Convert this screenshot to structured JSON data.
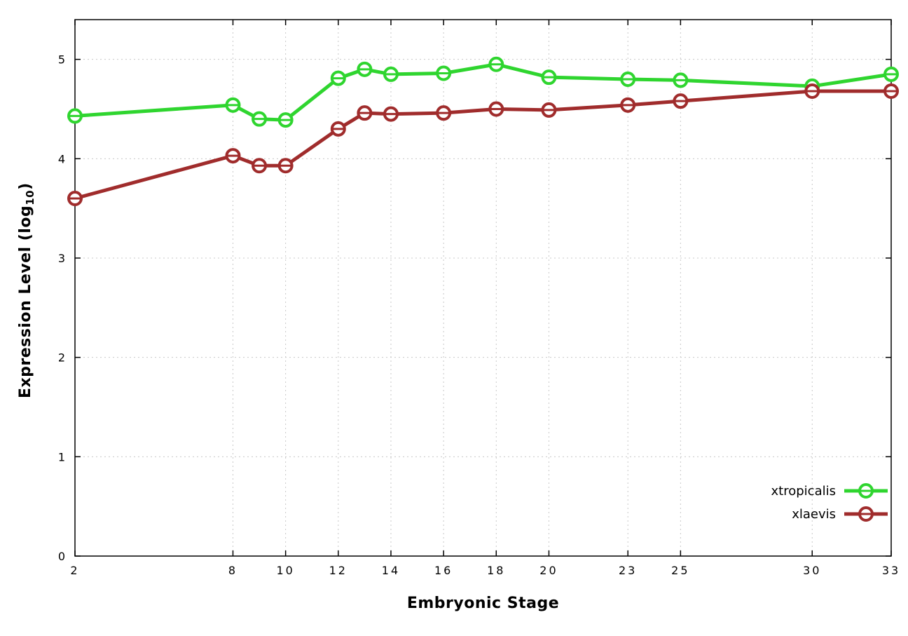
{
  "chart_data": {
    "type": "line",
    "title": "",
    "xlabel": "Embryonic Stage",
    "ylabel": "Expression Level (log10)",
    "ylabel_parts": {
      "pre": "Expression Level (log",
      "sub": "10",
      "post": ")"
    },
    "xlim": [
      2,
      33
    ],
    "ylim": [
      0,
      5.4
    ],
    "x_ticks": [
      2,
      8,
      10,
      12,
      14,
      16,
      18,
      20,
      23,
      25,
      30,
      33
    ],
    "y_ticks": [
      0,
      1,
      2,
      3,
      4,
      5
    ],
    "grid": true,
    "legend_position": "bottom-right",
    "x": [
      2,
      8,
      9,
      10,
      12,
      13,
      14,
      16,
      18,
      20,
      23,
      25,
      30,
      33
    ],
    "series": [
      {
        "name": "xtropicalis",
        "color": "#2fd52f",
        "values": [
          4.43,
          4.54,
          4.4,
          4.39,
          4.81,
          4.9,
          4.85,
          4.86,
          4.95,
          4.82,
          4.8,
          4.79,
          4.73,
          4.85
        ]
      },
      {
        "name": "xlaevis",
        "color": "#a02c2c",
        "values": [
          3.6,
          4.03,
          3.93,
          3.93,
          4.3,
          4.46,
          4.45,
          4.46,
          4.5,
          4.49,
          4.54,
          4.58,
          4.68,
          4.68
        ]
      }
    ],
    "colors": {
      "grid": "#c8c8c8",
      "border": "#000000",
      "text": "#000000"
    }
  }
}
